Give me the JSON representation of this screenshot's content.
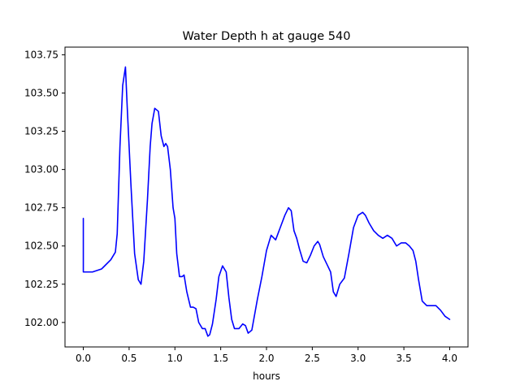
{
  "chart_data": {
    "type": "line",
    "title": "Water Depth h at gauge 540",
    "xlabel": "hours",
    "ylabel": "",
    "xlim": [
      -0.2,
      4.2
    ],
    "ylim": [
      101.84,
      103.8
    ],
    "grid": false,
    "x_ticks": [
      0.0,
      0.5,
      1.0,
      1.5,
      2.0,
      2.5,
      3.0,
      3.5,
      4.0
    ],
    "x_tick_labels": [
      "0.0",
      "0.5",
      "1.0",
      "1.5",
      "2.0",
      "2.5",
      "3.0",
      "3.5",
      "4.0"
    ],
    "y_ticks": [
      102.0,
      102.25,
      102.5,
      102.75,
      103.0,
      103.25,
      103.5,
      103.75
    ],
    "y_tick_labels": [
      "102.00",
      "102.25",
      "102.50",
      "102.75",
      "103.00",
      "103.25",
      "103.50",
      "103.75"
    ],
    "series": [
      {
        "color": "#0000ff",
        "x": [
          0.0,
          0.0,
          0.1,
          0.2,
          0.3,
          0.35,
          0.37,
          0.4,
          0.43,
          0.46,
          0.48,
          0.52,
          0.56,
          0.6,
          0.63,
          0.66,
          0.7,
          0.73,
          0.75,
          0.78,
          0.82,
          0.85,
          0.88,
          0.9,
          0.92,
          0.95,
          0.98,
          1.0,
          1.02,
          1.05,
          1.08,
          1.1,
          1.13,
          1.17,
          1.2,
          1.23,
          1.26,
          1.3,
          1.33,
          1.36,
          1.38,
          1.41,
          1.45,
          1.48,
          1.52,
          1.56,
          1.59,
          1.62,
          1.65,
          1.7,
          1.74,
          1.77,
          1.8,
          1.84,
          1.9,
          1.95,
          2.0,
          2.05,
          2.1,
          2.15,
          2.2,
          2.24,
          2.27,
          2.3,
          2.33,
          2.36,
          2.4,
          2.44,
          2.48,
          2.52,
          2.56,
          2.58,
          2.62,
          2.66,
          2.7,
          2.73,
          2.76,
          2.8,
          2.85,
          2.9,
          2.95,
          3.0,
          3.05,
          3.08,
          3.12,
          3.17,
          3.22,
          3.27,
          3.32,
          3.37,
          3.42,
          3.47,
          3.52,
          3.56,
          3.6,
          3.63,
          3.66,
          3.7,
          3.75,
          3.8,
          3.85,
          3.9,
          3.95,
          4.0
        ],
        "y": [
          102.68,
          102.33,
          102.33,
          102.35,
          102.41,
          102.46,
          102.58,
          103.15,
          103.55,
          103.67,
          103.4,
          102.9,
          102.45,
          102.28,
          102.25,
          102.4,
          102.8,
          103.15,
          103.3,
          103.4,
          103.38,
          103.22,
          103.15,
          103.17,
          103.15,
          103.0,
          102.75,
          102.68,
          102.45,
          102.3,
          102.3,
          102.31,
          102.2,
          102.1,
          102.1,
          102.09,
          102.0,
          101.96,
          101.96,
          101.91,
          101.92,
          101.99,
          102.15,
          102.3,
          102.37,
          102.33,
          102.16,
          102.02,
          101.96,
          101.96,
          101.99,
          101.98,
          101.93,
          101.95,
          102.15,
          102.3,
          102.47,
          102.57,
          102.54,
          102.62,
          102.7,
          102.75,
          102.73,
          102.6,
          102.55,
          102.48,
          102.4,
          102.39,
          102.44,
          102.5,
          102.53,
          102.51,
          102.43,
          102.38,
          102.33,
          102.2,
          102.17,
          102.25,
          102.29,
          102.45,
          102.62,
          102.7,
          102.72,
          102.7,
          102.65,
          102.6,
          102.57,
          102.55,
          102.57,
          102.55,
          102.5,
          102.52,
          102.52,
          102.5,
          102.47,
          102.4,
          102.28,
          102.14,
          102.11,
          102.11,
          102.11,
          102.08,
          102.04,
          102.02
        ]
      }
    ]
  }
}
